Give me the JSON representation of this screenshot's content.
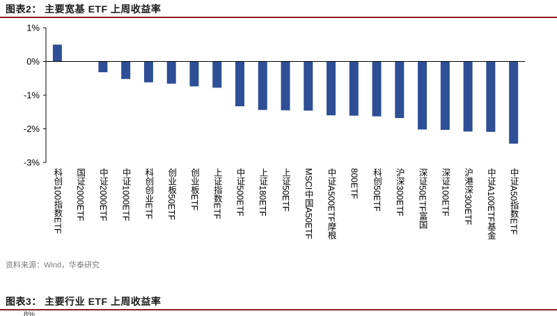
{
  "figure2": {
    "title": "图表2：  主要宽基 ETF 上周收益率",
    "source": "资料来源：Wind，华泰研究"
  },
  "figure3": {
    "title": "图表3：  主要行业 ETF 上周收益率",
    "partial_tick": "8%"
  },
  "chart_data": {
    "type": "bar",
    "title": "主要宽基 ETF 上周收益率",
    "xlabel": "",
    "ylabel": "",
    "ylim": [
      -3,
      1
    ],
    "yticks": [
      1,
      0,
      -1,
      -2,
      -3
    ],
    "ytick_labels": [
      "1%",
      "0%",
      "-1%",
      "-2%",
      "-3%"
    ],
    "grid": false,
    "bar_color": "#2e4f96",
    "categories": [
      "科创100指数ETF",
      "国证2000ETF",
      "中证2000ETF",
      "中证1000ETF",
      "科创创业ETF",
      "创业板50ETF",
      "创业板ETF",
      "上证指数ETF",
      "中证500ETF",
      "上证180ETF",
      "上证50ETF",
      "MSCI中国A50ETF",
      "中证A500ETF摩根",
      "800ETF",
      "科创50ETF",
      "沪深300ETF",
      "深证50ETF富国",
      "深证100ETF",
      "沪港深300ETF",
      "中证A100ETF基金",
      "中证A50指数ETF"
    ],
    "values": [
      0.5,
      0.01,
      -0.32,
      -0.52,
      -0.62,
      -0.66,
      -0.74,
      -0.78,
      -1.33,
      -1.44,
      -1.45,
      -1.46,
      -1.6,
      -1.61,
      -1.63,
      -1.68,
      -2.02,
      -2.03,
      -2.08,
      -2.09,
      -2.44
    ]
  }
}
